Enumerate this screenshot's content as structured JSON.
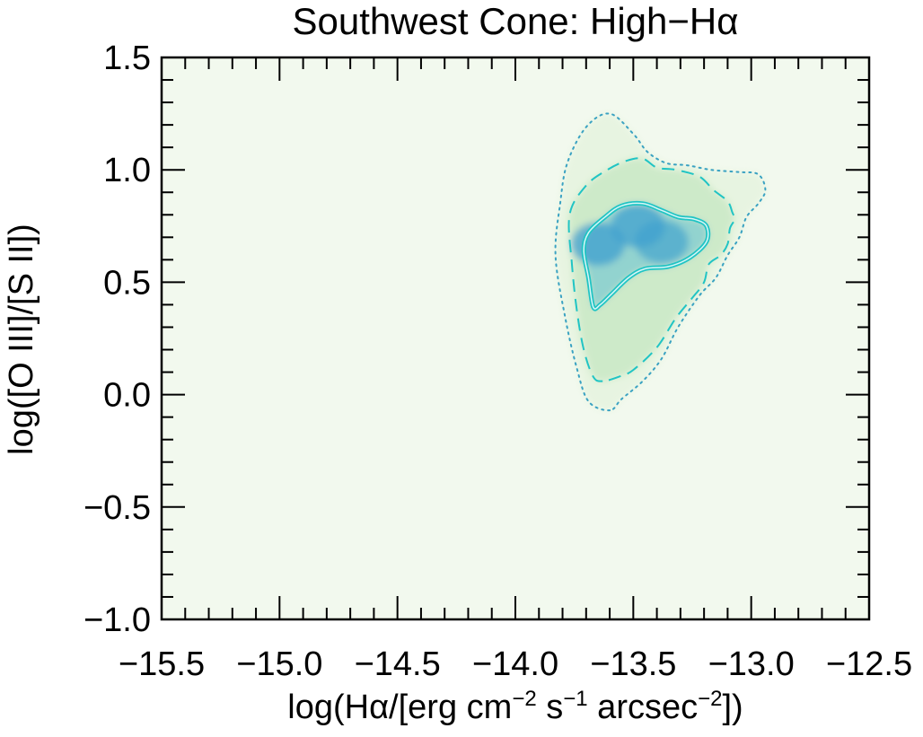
{
  "chart_data": {
    "type": "heatmap",
    "title": "Southwest Cone: High−Hα",
    "xlabel": {
      "prefix": "log(Hα/[erg cm",
      "exp1": "−2",
      "mid1": " s",
      "exp2": "−1",
      "mid2": " arcsec",
      "exp3": "−2",
      "suffix": "])"
    },
    "ylabel": "log([O III]/[S II])",
    "xlim": [
      -15.5,
      -12.5
    ],
    "ylim": [
      -1.0,
      1.5
    ],
    "x_ticks": [
      -15.5,
      -15.0,
      -14.5,
      -14.0,
      -13.5,
      -13.0,
      -12.5
    ],
    "x_tick_labels": [
      "−15.5",
      "−15.0",
      "−14.5",
      "−14.0",
      "−13.5",
      "−13.0",
      "−12.5"
    ],
    "y_ticks": [
      -1.0,
      -0.5,
      0.0,
      0.5,
      1.0,
      1.5
    ],
    "y_tick_labels": [
      "−1.0",
      "−0.5",
      "0.0",
      "0.5",
      "1.0",
      "1.5"
    ],
    "x_minor_step": 0.1,
    "y_minor_step": 0.1,
    "background_color": "#f2f9ee",
    "contour_color": "#20c4c4",
    "dotted_contour_color": "#3aa2c2",
    "density_peaks": [
      {
        "x": -13.65,
        "y": 0.67,
        "amplitude": 1.0
      },
      {
        "x": -13.48,
        "y": 0.75,
        "amplitude": 0.95
      },
      {
        "x": -13.38,
        "y": 0.68,
        "amplitude": 0.85
      }
    ],
    "contours": [
      {
        "level": "inner",
        "style": "solid",
        "points": [
          [
            -13.67,
            0.39
          ],
          [
            -13.69,
            0.52
          ],
          [
            -13.71,
            0.64
          ],
          [
            -13.69,
            0.72
          ],
          [
            -13.62,
            0.79
          ],
          [
            -13.55,
            0.84
          ],
          [
            -13.46,
            0.85
          ],
          [
            -13.38,
            0.82
          ],
          [
            -13.31,
            0.79
          ],
          [
            -13.24,
            0.78
          ],
          [
            -13.19,
            0.75
          ],
          [
            -13.19,
            0.68
          ],
          [
            -13.26,
            0.61
          ],
          [
            -13.35,
            0.57
          ],
          [
            -13.45,
            0.56
          ],
          [
            -13.52,
            0.52
          ],
          [
            -13.59,
            0.45
          ],
          [
            -13.64,
            0.4
          ]
        ]
      },
      {
        "level": "middle",
        "style": "dashed",
        "points": [
          [
            -13.63,
            0.06
          ],
          [
            -13.67,
            0.08
          ],
          [
            -13.71,
            0.2
          ],
          [
            -13.74,
            0.38
          ],
          [
            -13.76,
            0.58
          ],
          [
            -13.77,
            0.8
          ],
          [
            -13.7,
            0.93
          ],
          [
            -13.61,
            1.0
          ],
          [
            -13.53,
            1.04
          ],
          [
            -13.46,
            1.05
          ],
          [
            -13.4,
            1.01
          ],
          [
            -13.32,
            1.0
          ],
          [
            -13.22,
            0.97
          ],
          [
            -13.16,
            0.91
          ],
          [
            -13.1,
            0.86
          ],
          [
            -13.08,
            0.81
          ],
          [
            -13.07,
            0.78
          ],
          [
            -13.09,
            0.74
          ],
          [
            -13.1,
            0.67
          ],
          [
            -13.13,
            0.62
          ],
          [
            -13.18,
            0.58
          ],
          [
            -13.2,
            0.5
          ],
          [
            -13.25,
            0.43
          ],
          [
            -13.32,
            0.34
          ],
          [
            -13.4,
            0.21
          ],
          [
            -13.5,
            0.11
          ],
          [
            -13.56,
            0.08
          ]
        ]
      },
      {
        "level": "outer",
        "style": "dotted",
        "points": [
          [
            -13.6,
            -0.07
          ],
          [
            -13.69,
            -0.03
          ],
          [
            -13.74,
            0.12
          ],
          [
            -13.79,
            0.35
          ],
          [
            -13.83,
            0.62
          ],
          [
            -13.81,
            0.85
          ],
          [
            -13.78,
            1.03
          ],
          [
            -13.7,
            1.19
          ],
          [
            -13.6,
            1.25
          ],
          [
            -13.5,
            1.16
          ],
          [
            -13.44,
            1.08
          ],
          [
            -13.36,
            1.03
          ],
          [
            -13.27,
            1.02
          ],
          [
            -13.17,
            1.0
          ],
          [
            -13.05,
            0.99
          ],
          [
            -12.97,
            0.98
          ],
          [
            -12.94,
            0.91
          ],
          [
            -12.97,
            0.85
          ],
          [
            -13.02,
            0.79
          ],
          [
            -13.05,
            0.7
          ],
          [
            -13.1,
            0.62
          ],
          [
            -13.15,
            0.52
          ],
          [
            -13.22,
            0.44
          ],
          [
            -13.31,
            0.3
          ],
          [
            -13.38,
            0.16
          ],
          [
            -13.46,
            0.06
          ],
          [
            -13.55,
            -0.02
          ]
        ]
      }
    ]
  }
}
